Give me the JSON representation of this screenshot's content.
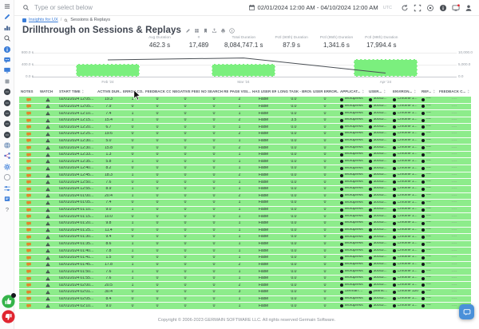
{
  "topbar": {
    "search_placeholder": "Type or select below",
    "date_range": "02/01/2024 12:00 AM - 04/10/2024 12:00 AM",
    "timezone": "UTC",
    "icons": [
      {
        "name": "refresh-icon",
        "kind": "refresh"
      },
      {
        "name": "fullscreen-icon",
        "kind": "fullscreen"
      },
      {
        "name": "record-icon",
        "kind": "record"
      },
      {
        "name": "info-circle-icon",
        "kind": "infodark"
      },
      {
        "name": "screen-alert-icon",
        "kind": "monitoralert"
      },
      {
        "name": "user-icon",
        "kind": "user"
      }
    ]
  },
  "sidebar": {
    "icons": [
      {
        "name": "menu-icon",
        "kind": "menu"
      },
      {
        "name": "edit-pencil-icon",
        "kind": "pencilblue"
      },
      {
        "name": "analytics-icon",
        "kind": "analytics"
      },
      {
        "name": "search-icon",
        "kind": "search"
      },
      {
        "name": "info-icon",
        "kind": "infoblue"
      },
      {
        "name": "chat-icon",
        "kind": "chatblue"
      },
      {
        "name": "replay-monitor-icon",
        "kind": "monitorblue"
      },
      {
        "name": "widget-icon",
        "kind": "widget"
      },
      {
        "name": "app-badge-1-icon",
        "kind": "appdark"
      },
      {
        "name": "app-badge-2-icon",
        "kind": "appdark"
      },
      {
        "name": "app-badge-3-icon",
        "kind": "appdark"
      },
      {
        "name": "app-badge-4-icon",
        "kind": "appdark"
      },
      {
        "name": "app-badge-5-icon",
        "kind": "appdark"
      },
      {
        "name": "globe-icon",
        "kind": "globe"
      },
      {
        "name": "share-icon",
        "kind": "share"
      },
      {
        "name": "settings-gear-icon",
        "kind": "gear"
      },
      {
        "name": "status-ring-icon",
        "kind": "ring"
      },
      {
        "name": "filters-sliders-icon",
        "kind": "sliders"
      },
      {
        "name": "board-icon",
        "kind": "board"
      },
      {
        "name": "help-icon",
        "kind": "help"
      }
    ]
  },
  "breadcrumb": {
    "link": "Insights for UX",
    "separator": "/",
    "current": "Sessions & Replays"
  },
  "page": {
    "title": "Drillthrough on Sessions & Replays",
    "title_icons": [
      {
        "name": "edit-icon",
        "kind": "pencilgray"
      },
      {
        "name": "grid-icon",
        "kind": "grid"
      },
      {
        "name": "bookmark-icon",
        "kind": "bookmark"
      },
      {
        "name": "export-icon",
        "kind": "exportic"
      },
      {
        "name": "print-icon",
        "kind": "printic"
      },
      {
        "name": "info-small-icon",
        "kind": "infogray"
      }
    ]
  },
  "kpis": [
    {
      "label": "Avg Duration",
      "value": "462.3 s"
    },
    {
      "label": "#",
      "value": "17,489"
    },
    {
      "label": "Total Duration",
      "value": "8,084,747.1 s"
    },
    {
      "label": "Pctl (90th) Duration",
      "value": "87.9 s"
    },
    {
      "label": "Pctl (95th) Duration",
      "value": "1,341.6 s"
    },
    {
      "label": "Pctl (99th) Duration",
      "value": "17,994.4 s"
    }
  ],
  "chart_data": {
    "type": "bar",
    "categories": [
      "Feb '24",
      "Mar '24",
      "Apr '24"
    ],
    "series": [
      {
        "name": "Avg Duration (s)",
        "type": "bar",
        "values": [
          440,
          430,
          600
        ]
      },
      {
        "name": "Count",
        "type": "line",
        "values": [
          7000,
          7800,
          1500
        ]
      }
    ],
    "left_axis": {
      "ticks": [
        "800.0 s",
        "400.0 s",
        "0.0 s"
      ],
      "max": 800
    },
    "right_axis": {
      "ticks": [
        "10,000.0",
        "5,000.0",
        "0.0"
      ],
      "max": 10000
    },
    "bar_color": "#7bef7e",
    "line_color": "#4a4f55",
    "grid": true,
    "legend": "none"
  },
  "table": {
    "columns": [
      {
        "label": "NOTES",
        "sort": false
      },
      {
        "label": "WATCH",
        "sort": false
      },
      {
        "label": "START TIME",
        "sort": true
      },
      {
        "label": "ACTIVE DUR...",
        "sort": true
      },
      {
        "label": "ERROR CO...",
        "sort": true
      },
      {
        "label": "FEEDBACK COM...",
        "sort": true
      },
      {
        "label": "NEGATIVE FEED...",
        "sort": true
      },
      {
        "label": "NO SEARCH RE...",
        "sort": true
      },
      {
        "label": "PAGE VISI...",
        "sort": true
      },
      {
        "label": "HAS USER ERR...",
        "sort": true
      },
      {
        "label": "LONG TASK - BROWS...",
        "sort": true
      },
      {
        "label": "USER ERROR...",
        "sort": true
      },
      {
        "label": "APPLICAT...",
        "sort": true
      },
      {
        "label": "USER...",
        "sort": true
      },
      {
        "label": "ENVIRON...",
        "sort": true
      },
      {
        "label": "REF...",
        "sort": true
      },
      {
        "label": "FEEDBACK C...",
        "sort": true
      }
    ],
    "row_fields": [
      "start_time",
      "active_duration",
      "error_count",
      "feedback_comments",
      "negative_feedback",
      "no_search_results",
      "page_visits",
      "has_user_error",
      "long_task_browser",
      "user_errors",
      "application",
      "user",
      "environment",
      "reference",
      "feedback"
    ],
    "rows": [
      [
        "02/01/2024 12:05...",
        "19.3",
        "1",
        "0",
        "0",
        "0",
        "2",
        "False",
        "0.0",
        "0",
        "Wordpress",
        "30c63...",
        "Chrome 1...",
        "----",
        "----"
      ],
      [
        "02/01/2024 12:05...",
        "7.9",
        "0",
        "0",
        "0",
        "0",
        "1",
        "False",
        "0.0",
        "0",
        "Wordpress",
        "30c63...",
        "Chrome 1...",
        "----",
        "----"
      ],
      [
        "02/01/2024 12:10...",
        "7.4",
        "1",
        "0",
        "0",
        "0",
        "1",
        "False",
        "0.0",
        "0",
        "Wordpress",
        "30c63...",
        "Chrome 1...",
        "----",
        "----"
      ],
      [
        "02/01/2024 12:15...",
        "15.4",
        "1",
        "0",
        "0",
        "0",
        "2",
        "False",
        "3.5",
        "0",
        "Wordpress",
        "30c63...",
        "Chrome 1...",
        "----",
        "----"
      ],
      [
        "02/01/2024 12:20...",
        "6.7",
        "0",
        "0",
        "0",
        "0",
        "1",
        "False",
        "0.0",
        "0",
        "Wordpress",
        "30c63...",
        "Chrome 1...",
        "----",
        "----"
      ],
      [
        "02/01/2024 12:25...",
        "19.6",
        "0",
        "0",
        "0",
        "0",
        "2",
        "False",
        "0.0",
        "0",
        "Wordpress",
        "30c63...",
        "Chrome 1...",
        "----",
        "----"
      ],
      [
        "02/01/2024 12:30...",
        "5.0",
        "0",
        "0",
        "0",
        "0",
        "1",
        "False",
        "0.0",
        "0",
        "Wordpress",
        "30c63...",
        "Chrome 1...",
        "----",
        "----"
      ],
      [
        "02/01/2024 12:30...",
        "15.8",
        "0",
        "0",
        "0",
        "0",
        "2",
        "False",
        "0.0",
        "0",
        "Wordpress",
        "30c63...",
        "Chrome 1...",
        "----",
        "----"
      ],
      [
        "02/01/2024 12:33...",
        "1.3",
        "0",
        "0",
        "0",
        "0",
        "1",
        "False",
        "0.0",
        "0",
        "Wordpress",
        "30c63...",
        "Chrome 1...",
        "----",
        "----"
      ],
      [
        "02/01/2024 12:35...",
        "5.8",
        "1",
        "0",
        "0",
        "0",
        "1",
        "False",
        "0.0",
        "0",
        "Wordpress",
        "30c63...",
        "Chrome 1...",
        "----",
        "----"
      ],
      [
        "02/01/2024 12:40...",
        "8.2",
        "0",
        "0",
        "0",
        "0",
        "1",
        "False",
        "0.0",
        "0",
        "Wordpress",
        "30c63...",
        "Chrome 1...",
        "----",
        "----"
      ],
      [
        "02/01/2024 12:45...",
        "18.3",
        "1",
        "0",
        "0",
        "0",
        "2",
        "False",
        "0.0",
        "0",
        "Wordpress",
        "30c63...",
        "Chrome 1...",
        "----",
        "----"
      ],
      [
        "02/01/2024 12:50...",
        "7.6",
        "0",
        "0",
        "0",
        "0",
        "1",
        "False",
        "0.0",
        "0",
        "Wordpress",
        "30c63...",
        "Chrome 1...",
        "----",
        "----"
      ],
      [
        "02/01/2024 12:55...",
        "8.9",
        "1",
        "0",
        "0",
        "0",
        "1",
        "False",
        "0.0",
        "0",
        "Wordpress",
        "30c63...",
        "Chrome 1...",
        "----",
        "----"
      ],
      [
        "02/01/2024 01:00...",
        "20.4",
        "1",
        "0",
        "0",
        "0",
        "2",
        "False",
        "0.0",
        "0",
        "Wordpress",
        "30c63...",
        "Chrome 1...",
        "----",
        "----"
      ],
      [
        "02/01/2024 01:05...",
        "7.4",
        "0",
        "0",
        "0",
        "0",
        "1",
        "False",
        "0.0",
        "0",
        "Wordpress",
        "30c63...",
        "Chrome 1...",
        "----",
        "----"
      ],
      [
        "02/01/2024 01:10...",
        "9.0",
        "1",
        "0",
        "0",
        "0",
        "1",
        "False",
        "0.0",
        "0",
        "Wordpress",
        "30c63...",
        "Chrome 1...",
        "----",
        "----"
      ],
      [
        "02/01/2024 01:15...",
        "10.0",
        "0",
        "0",
        "0",
        "0",
        "1",
        "False",
        "0.0",
        "0",
        "Wordpress",
        "30c63...",
        "Chrome 1...",
        "----",
        "----"
      ],
      [
        "02/01/2024 01:20...",
        "9.8",
        "1",
        "0",
        "0",
        "0",
        "1",
        "False",
        "0.0",
        "0",
        "Wordpress",
        "30c63...",
        "Chrome 1...",
        "----",
        "----"
      ],
      [
        "02/01/2024 01:25...",
        "11.4",
        "0",
        "0",
        "0",
        "0",
        "1",
        "False",
        "0.0",
        "0",
        "Wordpress",
        "30c63...",
        "Chrome 1...",
        "----",
        "----"
      ],
      [
        "02/01/2024 01:30...",
        "9.4",
        "0",
        "0",
        "0",
        "0",
        "1",
        "False",
        "0.0",
        "0",
        "Wordpress",
        "30c63...",
        "Chrome 1...",
        "----",
        "----"
      ],
      [
        "02/01/2024 01:35...",
        "8.6",
        "1",
        "0",
        "0",
        "0",
        "1",
        "False",
        "0.0",
        "0",
        "Wordpress",
        "30c63...",
        "Chrome 1...",
        "----",
        "----"
      ],
      [
        "02/01/2024 01:40...",
        "7.8",
        "1",
        "0",
        "0",
        "0",
        "1",
        "False",
        "0.0",
        "0",
        "Wordpress",
        "30c63...",
        "Chrome 1...",
        "----",
        "----"
      ],
      [
        "02/01/2024 01:41...",
        "1.5",
        "0",
        "0",
        "0",
        "0",
        "1",
        "False",
        "0.0",
        "0",
        "Wordpress",
        "30c63...",
        "Chrome 1...",
        "----",
        "----"
      ],
      [
        "02/01/2024 01:45...",
        "17.8",
        "1",
        "0",
        "0",
        "0",
        "2",
        "False",
        "0.0",
        "0",
        "Wordpress",
        "30c63...",
        "Chrome 1...",
        "----",
        "----"
      ],
      [
        "02/01/2024 01:50...",
        "7.6",
        "1",
        "0",
        "0",
        "0",
        "1",
        "False",
        "0.0",
        "0",
        "Wordpress",
        "30c63...",
        "Chrome 1...",
        "----",
        "----"
      ],
      [
        "02/01/2024 01:55...",
        "7.6",
        "1",
        "0",
        "0",
        "0",
        "1",
        "False",
        "0.0",
        "0",
        "Wordpress",
        "30c63...",
        "Chrome 1...",
        "----",
        "----"
      ],
      [
        "02/01/2024 02:00...",
        "20.5",
        "1",
        "0",
        "0",
        "0",
        "2",
        "False",
        "0.0",
        "0",
        "Wordpress",
        "30c63...",
        "Chrome 1...",
        "----",
        "----"
      ],
      [
        "02/01/2024 02:01...",
        "30.4",
        "0",
        "0",
        "0",
        "0",
        "3",
        "False",
        "0.0",
        "0",
        "German ...",
        "yannic...",
        "Chrome 120",
        "----",
        "----"
      ],
      [
        "02/01/2024 02:05...",
        "8.4",
        "0",
        "0",
        "0",
        "0",
        "1",
        "False",
        "0.0",
        "0",
        "Wordpress",
        "30c63...",
        "Chrome 1...",
        "----",
        "----"
      ],
      [
        "02/01/2024 02:10...",
        "9.0",
        "0",
        "0",
        "0",
        "0",
        "1",
        "False",
        "0.0",
        "0",
        "Wordpress",
        "30c63...",
        "Chrome 1...",
        "----",
        "----"
      ]
    ],
    "row_green": "#8dec8b"
  },
  "feedback_widgets": {
    "thumb_up_color": "#35b44a",
    "thumb_down_color": "#e02530",
    "chat_color": "#4a90d9"
  },
  "footer": {
    "copyright": "Copyright © 2006-2023 GERMAIN SOFTWARE LLC. All rights reserved Germain Software."
  }
}
